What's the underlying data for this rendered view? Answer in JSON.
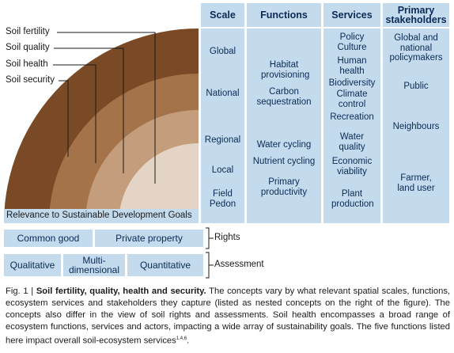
{
  "diagram": {
    "layers": [
      {
        "label": "Soil fertility",
        "color": "#7a4a26"
      },
      {
        "label": "Soil quality",
        "color": "#a4734a"
      },
      {
        "label": "Soil health",
        "color": "#c49d7c"
      },
      {
        "label": "Soil security",
        "color": "#e4d4c5"
      }
    ],
    "base_label": "Relevance to Sustainable Development Goals"
  },
  "table": {
    "headers": [
      "Scale",
      "Functions",
      "Services",
      "Primary stakeholders"
    ],
    "scale": [
      "Global",
      "National",
      "Regional",
      "Local",
      "Field",
      "Pedon"
    ],
    "functions": [
      "Habitat provisioning",
      "Carbon sequestration",
      "Water cycling",
      "Nutrient cycling",
      "Primary productivity"
    ],
    "services": [
      "Policy",
      "Culture",
      "Human health",
      "Biodiversity",
      "Climate control",
      "Recreation",
      "Water quality",
      "Economic viability",
      "Plant production"
    ],
    "stakeholders": [
      "Global and national policymakers",
      "Public",
      "Neighbours",
      "Farmer, land user"
    ]
  },
  "rights": {
    "items": [
      "Common good",
      "Private property"
    ],
    "label": "Rights"
  },
  "assessment": {
    "items": [
      "Qualitative",
      "Multi-dimensional",
      "Quantitative"
    ],
    "label": "Assessment"
  },
  "caption": {
    "label": "Fig. 1 |",
    "title": "Soil fertility, quality, health and security.",
    "body": "The concepts vary by what relevant spatial scales, functions, ecosystem services and stakeholders they capture (listed as nested concepts on the right of the figure). The concepts also differ in the view of soil rights and assessments. Soil health encompasses a broad range of ecosystem functions, services and actors, impacting a wide array of sustainability goals. The five functions listed here impact overall soil-ecosystem services",
    "refs": "1,4,6",
    "end": "."
  }
}
